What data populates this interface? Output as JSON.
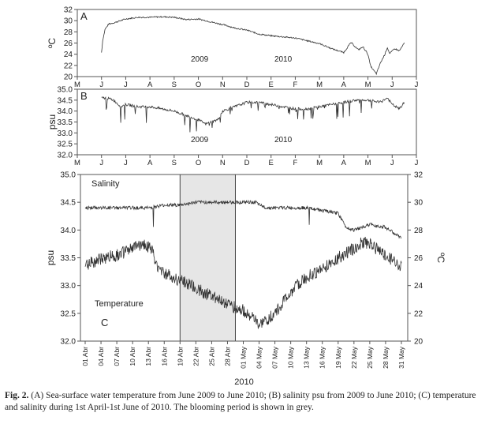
{
  "chart_data": [
    {
      "type": "line",
      "panel_label": "A",
      "ylabel": "ºC",
      "ylim": [
        20,
        32
      ],
      "yticks": [
        "20",
        "22",
        "24",
        "26",
        "28",
        "30",
        "32"
      ],
      "xticks": [
        "M",
        "J",
        "J",
        "A",
        "S",
        "O",
        "N",
        "D",
        "E",
        "F",
        "M",
        "A",
        "M",
        "J",
        "J"
      ],
      "annotations": [
        "2009",
        "2010"
      ],
      "series": [
        {
          "x": [
            1.0,
            1.05,
            1.15,
            1.3,
            1.5,
            2.0,
            2.5,
            3.0,
            3.5,
            4.0,
            4.5,
            5.0,
            5.5,
            6.0,
            6.5,
            7.0,
            7.5,
            8.0,
            8.5,
            9.0,
            9.5,
            10.0,
            10.5,
            11.0,
            11.3,
            11.6,
            11.8,
            12.0,
            12.1,
            12.2,
            12.35,
            12.5,
            12.7,
            12.8,
            12.9,
            13.1,
            13.3,
            13.5
          ],
          "values": [
            24.3,
            26.5,
            28.5,
            29.4,
            29.6,
            30.3,
            30.6,
            30.6,
            30.7,
            30.6,
            30.2,
            30.3,
            29.8,
            29.3,
            28.7,
            28.3,
            27.6,
            27.3,
            27.1,
            26.9,
            26.4,
            25.9,
            25.0,
            24.3,
            26.1,
            24.8,
            25.3,
            24.0,
            22.0,
            21.3,
            20.5,
            22.3,
            24.0,
            25.2,
            24.1,
            25.0,
            24.6,
            26.0
          ]
        }
      ]
    },
    {
      "type": "line",
      "panel_label": "B",
      "ylabel": "psu",
      "ylim": [
        32.0,
        35.0
      ],
      "yticks": [
        "32.0",
        "32.5",
        "33.0",
        "33.5",
        "34.0",
        "34.5",
        "35.0"
      ],
      "xticks": [
        "M",
        "J",
        "J",
        "A",
        "S",
        "O",
        "N",
        "D",
        "E",
        "F",
        "M",
        "A",
        "M",
        "J",
        "J"
      ],
      "annotations": [
        "2009",
        "2010"
      ],
      "series": [
        {
          "x": [
            1.0,
            1.2,
            1.5,
            1.8,
            2.0,
            2.5,
            3.0,
            3.5,
            4.0,
            4.5,
            5.0,
            5.3,
            5.5,
            5.8,
            6.0,
            6.5,
            7.0,
            7.5,
            8.0,
            8.5,
            9.0,
            9.5,
            10.0,
            10.5,
            11.0,
            11.5,
            12.0,
            12.5,
            12.8,
            13.0,
            13.3,
            13.5
          ],
          "values": [
            34.6,
            34.6,
            34.5,
            34.2,
            34.3,
            34.2,
            34.2,
            34.1,
            34.0,
            33.8,
            33.6,
            33.4,
            33.5,
            33.6,
            34.0,
            34.2,
            34.4,
            34.4,
            34.3,
            34.2,
            34.1,
            34.1,
            34.2,
            34.3,
            34.4,
            34.5,
            34.5,
            34.4,
            34.6,
            34.3,
            34.1,
            34.4
          ]
        }
      ]
    },
    {
      "type": "line",
      "panel_label": "C",
      "ylabel": "psu",
      "ylabel_right": "ºC",
      "ylim": [
        32.0,
        35.0
      ],
      "ylim_right": [
        20,
        32
      ],
      "yticks": [
        "32.0",
        "32.5",
        "33.0",
        "33.5",
        "34.0",
        "34.5",
        "35.0"
      ],
      "yticks_right": [
        "20",
        "22",
        "24",
        "26",
        "28",
        "30",
        "32"
      ],
      "xticks": [
        "01 Abr",
        "04 Abr",
        "07 Abr",
        "10 Abr",
        "13 Abr",
        "16 Abr",
        "19 Abr",
        "22 Abr",
        "25 Abr",
        "28 Abr",
        "01 May",
        "04 May",
        "07 May",
        "10 May",
        "13 May",
        "16 May",
        "19 May",
        "22 May",
        "25 May",
        "28 May",
        "31 May"
      ],
      "xlabel": "2010",
      "annotations": [
        "Salinity",
        "Temperature",
        "C"
      ],
      "shaded_period": [
        6,
        9.5
      ],
      "series": [
        {
          "name": "Salinity",
          "x": [
            0,
            1,
            2,
            3,
            4,
            5,
            6,
            7,
            8,
            9,
            9.5,
            10,
            10.3,
            10.8,
            11,
            11.5,
            12,
            12.2,
            12.5,
            13,
            14,
            15,
            16,
            16.5,
            17,
            18,
            19,
            20
          ],
          "values": [
            34.4,
            34.4,
            34.4,
            34.4,
            34.4,
            34.45,
            34.45,
            34.5,
            34.5,
            34.5,
            34.5,
            34.5,
            34.5,
            34.5,
            34.45,
            34.4,
            34.4,
            34.4,
            34.4,
            34.4,
            34.4,
            34.35,
            34.3,
            34.05,
            34.0,
            34.1,
            34.05,
            33.85
          ]
        },
        {
          "name": "Temperature",
          "x": [
            0,
            0.5,
            1,
            1.5,
            2,
            2.5,
            3,
            3.4,
            3.8,
            4.2,
            4.5,
            5,
            5.5,
            6,
            6.5,
            7,
            7.5,
            8,
            8.5,
            9,
            9.5,
            10,
            10.5,
            11,
            11.5,
            12,
            12.5,
            13,
            13.5,
            14,
            14.5,
            15,
            15.5,
            16,
            16.5,
            17,
            17.5,
            18,
            18.5,
            19,
            19.5,
            20
          ],
          "values": [
            25.5,
            25.7,
            25.9,
            26.1,
            26.2,
            26.4,
            26.7,
            26.9,
            27.0,
            26.6,
            25.5,
            24.9,
            24.6,
            24.4,
            24.1,
            23.8,
            23.5,
            23.3,
            23.0,
            22.7,
            22.4,
            22.2,
            21.8,
            21.1,
            21.5,
            22.0,
            22.8,
            23.5,
            24.1,
            24.6,
            24.9,
            25.2,
            25.6,
            26.0,
            26.3,
            26.7,
            27.1,
            27.0,
            26.6,
            26.1,
            25.8,
            25.4
          ]
        }
      ]
    }
  ],
  "caption": {
    "fig_label": "Fig. 2.",
    "text": " (A) Sea-surface water temperature from June 2009 to June 2010; (B) salinity psu from 2009 to June 2010; (C) temperature and salinity during 1st April-1st June of 2010. The blooming period is shown in grey."
  },
  "colors": {
    "line": "#333333",
    "shade": "#e6e6e6",
    "axis": "#555555"
  }
}
